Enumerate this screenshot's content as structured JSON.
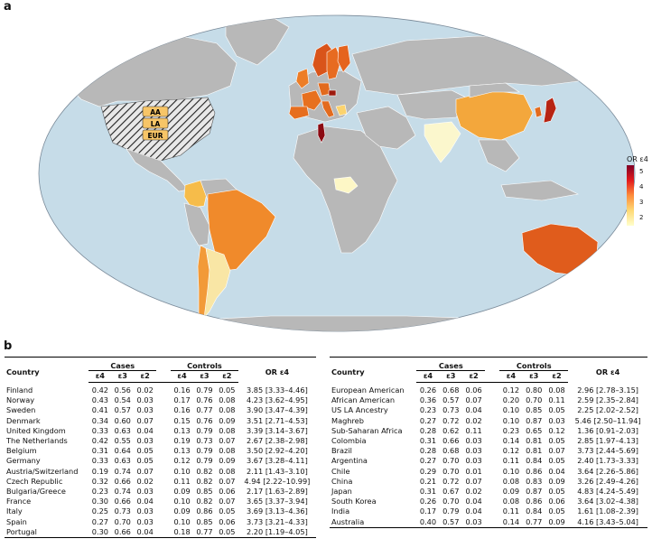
{
  "panel_a": "a",
  "panel_b": "b",
  "map": {
    "legend_title": "OR ε4",
    "legend_ticks": [
      "5",
      "4",
      "3",
      "2"
    ],
    "us_labels": [
      "AA",
      "LA",
      "EUR"
    ],
    "colors": {
      "ocean": "#c6dce8",
      "land": "#b8b8b8",
      "low": "#ffffcc",
      "high": "#800026"
    }
  },
  "headers": {
    "country": "Country",
    "cases": "Cases",
    "controls": "Controls",
    "or": "OR ε4",
    "e4": "ε4",
    "e3": "ε3",
    "e2": "ε2"
  },
  "table_left": [
    {
      "country": "Finland",
      "c4": "0.42",
      "c3": "0.56",
      "c2": "0.02",
      "k4": "0.16",
      "k3": "0.79",
      "k2": "0.05",
      "or": "3.85 [3.33–4.46]"
    },
    {
      "country": "Norway",
      "c4": "0.43",
      "c3": "0.54",
      "c2": "0.03",
      "k4": "0.17",
      "k3": "0.76",
      "k2": "0.08",
      "or": "4.23 [3.62–4.95]"
    },
    {
      "country": "Sweden",
      "c4": "0.41",
      "c3": "0.57",
      "c2": "0.03",
      "k4": "0.16",
      "k3": "0.77",
      "k2": "0.08",
      "or": "3.90 [3.47–4.39]"
    },
    {
      "country": "Denmark",
      "c4": "0.34",
      "c3": "0.60",
      "c2": "0.07",
      "k4": "0.15",
      "k3": "0.76",
      "k2": "0.09",
      "or": "3.51 [2.71–4.53]"
    },
    {
      "country": "United Kingdom",
      "c4": "0.33",
      "c3": "0.63",
      "c2": "0.04",
      "k4": "0.13",
      "k3": "0.79",
      "k2": "0.08",
      "or": "3.39 [3.14–3.67]"
    },
    {
      "country": "The Netherlands",
      "c4": "0.42",
      "c3": "0.55",
      "c2": "0.03",
      "k4": "0.19",
      "k3": "0.73",
      "k2": "0.07",
      "or": "2.67 [2.38–2.98]"
    },
    {
      "country": "Belgium",
      "c4": "0.31",
      "c3": "0.64",
      "c2": "0.05",
      "k4": "0.13",
      "k3": "0.79",
      "k2": "0.08",
      "or": "3.50 [2.92–4.20]"
    },
    {
      "country": "Germany",
      "c4": "0.33",
      "c3": "0.63",
      "c2": "0.05",
      "k4": "0.12",
      "k3": "0.79",
      "k2": "0.09",
      "or": "3.67 [3.28–4.11]"
    },
    {
      "country": "Austria/Switzerland",
      "c4": "0.19",
      "c3": "0.74",
      "c2": "0.07",
      "k4": "0.10",
      "k3": "0.82",
      "k2": "0.08",
      "or": "2.11 [1.43–3.10]"
    },
    {
      "country": "Czech Republic",
      "c4": "0.32",
      "c3": "0.66",
      "c2": "0.02",
      "k4": "0.11",
      "k3": "0.82",
      "k2": "0.07",
      "or": "4.94 [2.22–10.99]"
    },
    {
      "country": "Bulgaria/Greece",
      "c4": "0.23",
      "c3": "0.74",
      "c2": "0.03",
      "k4": "0.09",
      "k3": "0.85",
      "k2": "0.06",
      "or": "2.17 [1.63–2.89]"
    },
    {
      "country": "France",
      "c4": "0.30",
      "c3": "0.66",
      "c2": "0.04",
      "k4": "0.10",
      "k3": "0.82",
      "k2": "0.07",
      "or": "3.65 [3.37–3.94]"
    },
    {
      "country": "Italy",
      "c4": "0.25",
      "c3": "0.73",
      "c2": "0.03",
      "k4": "0.09",
      "k3": "0.86",
      "k2": "0.05",
      "or": "3.69 [3.13–4.36]"
    },
    {
      "country": "Spain",
      "c4": "0.27",
      "c3": "0.70",
      "c2": "0.03",
      "k4": "0.10",
      "k3": "0.85",
      "k2": "0.06",
      "or": "3.73 [3.21–4.33]"
    },
    {
      "country": "Portugal",
      "c4": "0.30",
      "c3": "0.66",
      "c2": "0.04",
      "k4": "0.18",
      "k3": "0.77",
      "k2": "0.05",
      "or": "2.20 [1.19–4.05]"
    }
  ],
  "table_right": [
    {
      "country": "European American",
      "c4": "0.26",
      "c3": "0.68",
      "c2": "0.06",
      "k4": "0.12",
      "k3": "0.80",
      "k2": "0.08",
      "or": "2.96 [2.78–3.15]"
    },
    {
      "country": "African American",
      "c4": "0.36",
      "c3": "0.57",
      "c2": "0.07",
      "k4": "0.20",
      "k3": "0.70",
      "k2": "0.11",
      "or": "2.59 [2.35–2.84]"
    },
    {
      "country": "US LA Ancestry",
      "c4": "0.23",
      "c3": "0.73",
      "c2": "0.04",
      "k4": "0.10",
      "k3": "0.85",
      "k2": "0.05",
      "or": "2.25 [2.02–2.52]"
    },
    {
      "country": "Maghreb",
      "c4": "0.27",
      "c3": "0.72",
      "c2": "0.02",
      "k4": "0.10",
      "k3": "0.87",
      "k2": "0.03",
      "or": "5.46 [2.50–11.94]"
    },
    {
      "country": "Sub-Saharan Africa",
      "c4": "0.28",
      "c3": "0.62",
      "c2": "0.11",
      "k4": "0.23",
      "k3": "0.65",
      "k2": "0.12",
      "or": "1.36 [0.91–2.03]"
    },
    {
      "country": "Colombia",
      "c4": "0.31",
      "c3": "0.66",
      "c2": "0.03",
      "k4": "0.14",
      "k3": "0.81",
      "k2": "0.05",
      "or": "2.85 [1.97–4.13]"
    },
    {
      "country": "Brazil",
      "c4": "0.28",
      "c3": "0.68",
      "c2": "0.03",
      "k4": "0.12",
      "k3": "0.81",
      "k2": "0.07",
      "or": "3.73 [2.44–5.69]"
    },
    {
      "country": "Argentina",
      "c4": "0.27",
      "c3": "0.70",
      "c2": "0.03",
      "k4": "0.11",
      "k3": "0.84",
      "k2": "0.05",
      "or": "2.40 [1.73–3.33]"
    },
    {
      "country": "Chile",
      "c4": "0.29",
      "c3": "0.70",
      "c2": "0.01",
      "k4": "0.10",
      "k3": "0.86",
      "k2": "0.04",
      "or": "3.64 [2.26–5.86]"
    },
    {
      "country": "China",
      "c4": "0.21",
      "c3": "0.72",
      "c2": "0.07",
      "k4": "0.08",
      "k3": "0.83",
      "k2": "0.09",
      "or": "3.26 [2.49–4.26]"
    },
    {
      "country": "Japan",
      "c4": "0.31",
      "c3": "0.67",
      "c2": "0.02",
      "k4": "0.09",
      "k3": "0.87",
      "k2": "0.05",
      "or": "4.83 [4.24–5.49]"
    },
    {
      "country": "South Korea",
      "c4": "0.26",
      "c3": "0.70",
      "c2": "0.04",
      "k4": "0.08",
      "k3": "0.86",
      "k2": "0.06",
      "or": "3.64 [3.02–4.38]"
    },
    {
      "country": "India",
      "c4": "0.17",
      "c3": "0.79",
      "c2": "0.04",
      "k4": "0.11",
      "k3": "0.84",
      "k2": "0.05",
      "or": "1.61 [1.08–2.39]"
    },
    {
      "country": "Australia",
      "c4": "0.40",
      "c3": "0.57",
      "c3x": "",
      "c2": "0.03",
      "k4": "0.14",
      "k3": "0.77",
      "k2": "0.09",
      "or": "4.16 [3.43–5.04]"
    }
  ]
}
